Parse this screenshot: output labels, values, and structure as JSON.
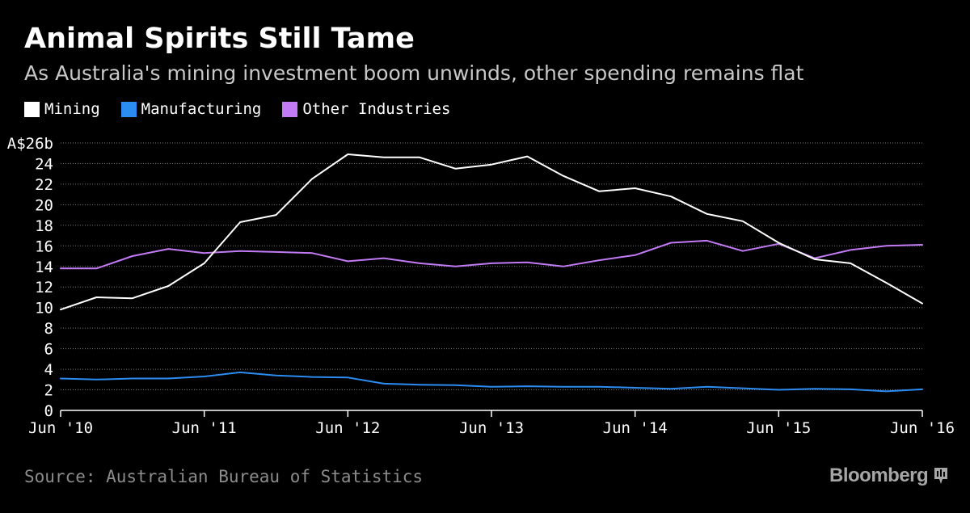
{
  "title": "Animal Spirits Still Tame",
  "subtitle": "As Australia's mining investment boom unwinds, other spending remains flat",
  "source": "Source: Australian Bureau of Statistics",
  "brand": "Bloomberg",
  "colors": {
    "background": "#000000",
    "mining": "#ffffff",
    "manufacturing": "#2b8cf2",
    "other_industries": "#c27af5",
    "grid": "#7a7a7a",
    "axis_text": "#ffffff"
  },
  "chart_data": {
    "type": "line",
    "title": "Animal Spirits Still Tame",
    "subtitle": "As Australia's mining investment boom unwinds, other spending remains flat",
    "legend": [
      "Mining",
      "Manufacturing",
      "Other Industries"
    ],
    "legend_position": "top-left",
    "grid": true,
    "ylim": [
      0,
      26
    ],
    "yticks": [
      0,
      2,
      4,
      6,
      8,
      10,
      12,
      14,
      16,
      18,
      20,
      22,
      24,
      26
    ],
    "ytick_labels": [
      "0",
      "2",
      "4",
      "6",
      "8",
      "10",
      "12",
      "14",
      "16",
      "18",
      "20",
      "22",
      "24",
      "A$26b"
    ],
    "xlim": [
      0,
      24
    ],
    "xticks": [
      0,
      4,
      8,
      12,
      16,
      20,
      24
    ],
    "xtick_labels": [
      "Jun '10",
      "Jun '11",
      "Jun '12",
      "Jun '13",
      "Jun '14",
      "Jun '15",
      "Jun '16"
    ],
    "x": [
      0,
      1,
      2,
      3,
      4,
      5,
      6,
      7,
      8,
      9,
      10,
      11,
      12,
      13,
      14,
      15,
      16,
      17,
      18,
      19,
      20,
      21,
      22,
      23,
      24
    ],
    "series": [
      {
        "name": "Mining",
        "color": "#ffffff",
        "values": [
          9.8,
          11.0,
          10.9,
          12.1,
          14.3,
          18.3,
          19.0,
          22.5,
          24.9,
          24.6,
          24.6,
          23.5,
          23.9,
          24.7,
          22.8,
          21.3,
          21.6,
          20.8,
          19.1,
          18.4,
          16.3,
          14.7,
          14.3,
          12.4,
          10.4
        ]
      },
      {
        "name": "Manufacturing",
        "color": "#2b8cf2",
        "values": [
          3.1,
          3.0,
          3.1,
          3.1,
          3.3,
          3.7,
          3.4,
          3.25,
          3.2,
          2.6,
          2.5,
          2.45,
          2.3,
          2.35,
          2.3,
          2.3,
          2.2,
          2.1,
          2.3,
          2.15,
          2.0,
          2.1,
          2.05,
          1.85,
          2.05
        ]
      },
      {
        "name": "Other Industries",
        "color": "#c27af5",
        "values": [
          13.8,
          13.8,
          15.0,
          15.7,
          15.3,
          15.5,
          15.4,
          15.3,
          14.5,
          14.8,
          14.3,
          14.0,
          14.3,
          14.4,
          14.0,
          14.6,
          15.1,
          16.3,
          16.5,
          15.5,
          16.2,
          14.8,
          15.6,
          16.0,
          16.1
        ]
      }
    ]
  }
}
